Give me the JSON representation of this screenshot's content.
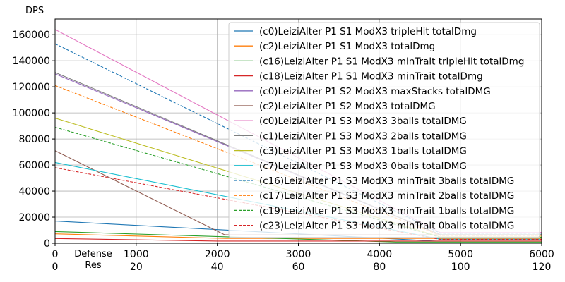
{
  "chart_data": {
    "type": "line",
    "ylabel": "DPS",
    "xlabel": "Defense",
    "x2label": "Res",
    "xlim": [
      0,
      6000
    ],
    "ylim": [
      0,
      172000
    ],
    "xticks": [
      0,
      1000,
      2000,
      3000,
      4000,
      5000,
      6000
    ],
    "x2ticks": [
      0,
      20,
      40,
      60,
      80,
      100,
      120
    ],
    "yticks": [
      0,
      20000,
      40000,
      60000,
      80000,
      100000,
      120000,
      140000,
      160000
    ],
    "grid": true,
    "legend_position": "top-right",
    "series": [
      {
        "name": "(c0)LeiziAlter P1 S1 ModX3 tripleHit totalDmg",
        "color": "#1f77b4",
        "dash": "solid",
        "x": [
          0,
          4700,
          6000
        ],
        "y": [
          17000,
          1600,
          1600
        ]
      },
      {
        "name": "(c2)LeiziAlter P1 S1 ModX3 totalDmg",
        "color": "#ff7f0e",
        "dash": "solid",
        "x": [
          0,
          2100,
          6000
        ],
        "y": [
          7200,
          3700,
          3700
        ]
      },
      {
        "name": "(c16)LeiziAlter P1 S1 ModX3 minTrait tripleHit totalDmg",
        "color": "#2ca02c",
        "dash": "solid",
        "x": [
          0,
          4200,
          6000
        ],
        "y": [
          9000,
          900,
          900
        ]
      },
      {
        "name": "(c18)LeiziAlter P1 S1 ModX3 minTrait totalDmg",
        "color": "#d62728",
        "dash": "solid",
        "x": [
          0,
          2000,
          6000
        ],
        "y": [
          3600,
          1700,
          1700
        ]
      },
      {
        "name": "(c0)LeiziAlter P1 S2 ModX3 maxStacks totalDMG",
        "color": "#9467bd",
        "dash": "solid",
        "x": [
          0,
          4750,
          6000
        ],
        "y": [
          130000,
          6500,
          6500
        ]
      },
      {
        "name": "(c2)LeiziAlter P1 S2 ModX3 totalDMG",
        "color": "#8c564b",
        "dash": "solid",
        "x": [
          0,
          2090,
          6000
        ],
        "y": [
          71000,
          6500,
          6500
        ]
      },
      {
        "name": "(c0)LeiziAlter P1 S3 ModX3 3balls totalDMG",
        "color": "#e377c2",
        "dash": "solid",
        "x": [
          0,
          4750,
          6000
        ],
        "y": [
          164000,
          8200,
          8200
        ]
      },
      {
        "name": "(c1)LeiziAlter P1 S3 ModX3 2balls totalDMG",
        "color": "#7f7f7f",
        "dash": "solid",
        "x": [
          0,
          4750,
          6000
        ],
        "y": [
          131000,
          6600,
          6600
        ]
      },
      {
        "name": "(c3)LeiziAlter P1 S3 ModX3 1balls totalDMG",
        "color": "#bcbd22",
        "dash": "solid",
        "x": [
          0,
          4750,
          6000
        ],
        "y": [
          96000,
          4800,
          4800
        ]
      },
      {
        "name": "(c7)LeiziAlter P1 S3 ModX3 0balls totalDMG",
        "color": "#17becf",
        "dash": "solid",
        "x": [
          0,
          4750,
          6000
        ],
        "y": [
          62000,
          3100,
          3100
        ]
      },
      {
        "name": "(c16)LeiziAlter P1 S3 ModX3 minTrait 3balls totalDMG",
        "color": "#1f77b4",
        "dash": "dashed",
        "x": [
          0,
          4750,
          6000
        ],
        "y": [
          153000,
          7700,
          7700
        ]
      },
      {
        "name": "(c17)LeiziAlter P1 S3 ModX3 minTrait 2balls totalDMG",
        "color": "#ff7f0e",
        "dash": "dashed",
        "x": [
          0,
          4750,
          6000
        ],
        "y": [
          121000,
          6000,
          6000
        ]
      },
      {
        "name": "(c19)LeiziAlter P1 S3 ModX3 minTrait 1balls totalDMG",
        "color": "#2ca02c",
        "dash": "dashed",
        "x": [
          0,
          4750,
          6000
        ],
        "y": [
          89000,
          4500,
          4500
        ]
      },
      {
        "name": "(c23)LeiziAlter P1 S3 ModX3 minTrait 0balls totalDMG",
        "color": "#d62728",
        "dash": "dashed",
        "x": [
          0,
          4750,
          6000
        ],
        "y": [
          58000,
          2900,
          2900
        ]
      }
    ]
  }
}
